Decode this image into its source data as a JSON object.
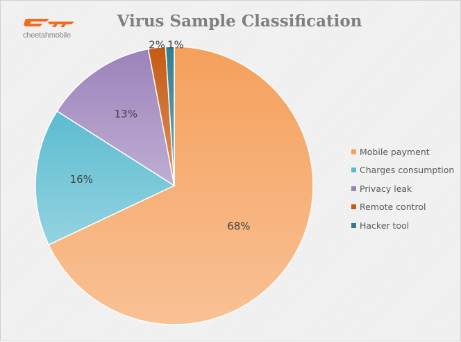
{
  "brand": {
    "logo_text": "cheetahmobile",
    "logo_color": "#f26b21"
  },
  "chart_data": {
    "type": "pie",
    "title": "Virus Sample Classification",
    "categories": [
      "Mobile payment",
      "Charges consumption",
      "Privacy leak",
      "Remote control",
      "Hacker tool"
    ],
    "values": [
      68,
      16,
      13,
      2,
      1
    ],
    "data_labels": [
      "68%",
      "16%",
      "13%",
      "2%",
      "1%"
    ],
    "colors": [
      "#f5a05c",
      "#5bbcd0",
      "#9c82bb",
      "#c55a11",
      "#2e7f91"
    ],
    "legend_position": "right",
    "start_angle": "top",
    "direction": "clockwise"
  }
}
